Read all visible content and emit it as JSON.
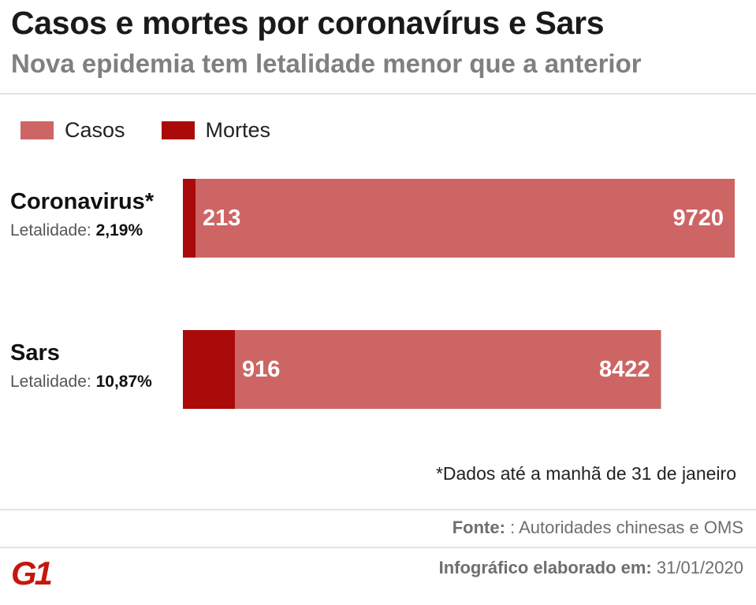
{
  "header": {
    "title": "Casos e mortes por coronavírus e Sars",
    "subtitle": "Nova epidemia tem letalidade menor que a anterior"
  },
  "legend": {
    "cases_label": "Casos",
    "deaths_label": "Mortes"
  },
  "colors": {
    "cases": "#cd6565",
    "deaths": "#aa0a0a",
    "bar_text": "#ffffff",
    "logo": "#c4170c"
  },
  "rows": [
    {
      "name": "Coronavirus*",
      "lethality_label": "Letalidade:",
      "lethality_value": "2,19%"
    },
    {
      "name": "Sars",
      "lethality_label": "Letalidade:",
      "lethality_value": "10,87%"
    }
  ],
  "chart_data": {
    "type": "bar",
    "orientation": "horizontal",
    "stacked": "overlay",
    "title": "Casos e mortes por coronavírus e Sars",
    "subtitle": "Nova epidemia tem letalidade menor que a anterior",
    "categories": [
      "Coronavirus*",
      "Sars"
    ],
    "series": [
      {
        "name": "Casos",
        "values": [
          9720,
          8422
        ]
      },
      {
        "name": "Mortes",
        "values": [
          213,
          916
        ]
      }
    ],
    "xlim": [
      0,
      9720
    ],
    "grid": false,
    "legend_position": "top-left"
  },
  "footer": {
    "note": "*Dados até a manhã de 31 de janeiro",
    "source_label": "Fonte:",
    "source_text": ": Autoridades chinesas e OMS",
    "credit_label": "Infográfico elaborado em:",
    "credit_date": "31/01/2020",
    "logo_text": "G1"
  }
}
